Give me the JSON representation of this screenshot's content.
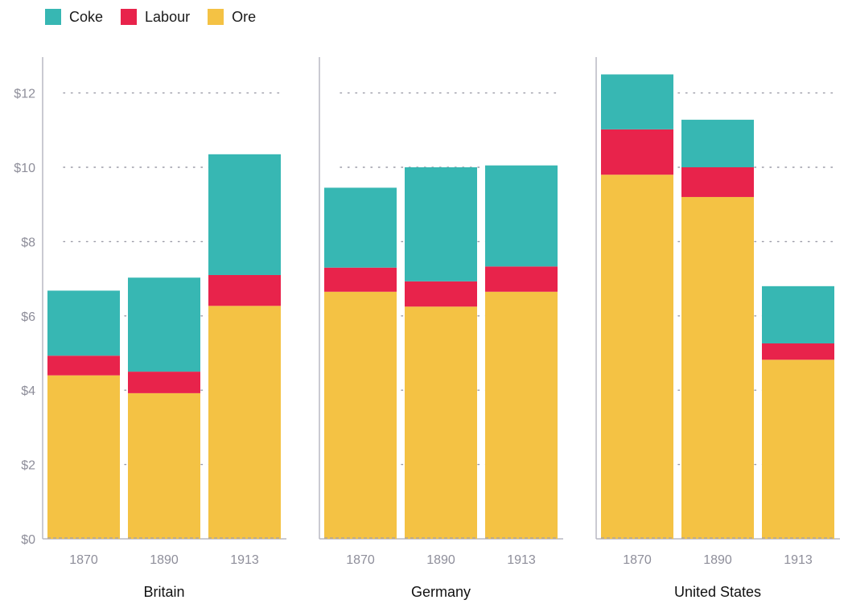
{
  "chart_data": {
    "type": "bar",
    "stacked": true,
    "title": "",
    "xlabel": "",
    "ylabel": "",
    "ylim": [
      0,
      13
    ],
    "yticks": [
      0,
      2,
      4,
      6,
      8,
      10,
      12
    ],
    "ytick_labels": [
      "$0",
      "$2",
      "$4",
      "$6",
      "$8",
      "$10",
      "$12"
    ],
    "grid": true,
    "legend_position": "top-left",
    "series_order": [
      "Ore",
      "Labour",
      "Coke"
    ],
    "legend": [
      {
        "key": "Coke",
        "label": "Coke",
        "color": "#37b7b3"
      },
      {
        "key": "Labour",
        "label": "Labour",
        "color": "#e8234b"
      },
      {
        "key": "Ore",
        "label": "Ore",
        "color": "#f4c244"
      }
    ],
    "groups": [
      {
        "name": "Britain",
        "categories": [
          "1870",
          "1890",
          "1913"
        ],
        "series": {
          "Ore": [
            4.4,
            3.92,
            6.27
          ],
          "Labour": [
            0.53,
            0.58,
            0.83
          ],
          "Coke": [
            1.75,
            2.53,
            3.25
          ]
        }
      },
      {
        "name": "Germany",
        "categories": [
          "1870",
          "1890",
          "1913"
        ],
        "series": {
          "Ore": [
            6.65,
            6.25,
            6.65
          ],
          "Labour": [
            0.65,
            0.68,
            0.68
          ],
          "Coke": [
            2.15,
            3.07,
            2.72
          ]
        }
      },
      {
        "name": "United States",
        "categories": [
          "1870",
          "1890",
          "1913"
        ],
        "series": {
          "Ore": [
            9.8,
            9.2,
            4.82
          ],
          "Labour": [
            1.22,
            0.8,
            0.44
          ],
          "Coke": [
            1.48,
            1.28,
            1.54
          ]
        }
      }
    ]
  }
}
